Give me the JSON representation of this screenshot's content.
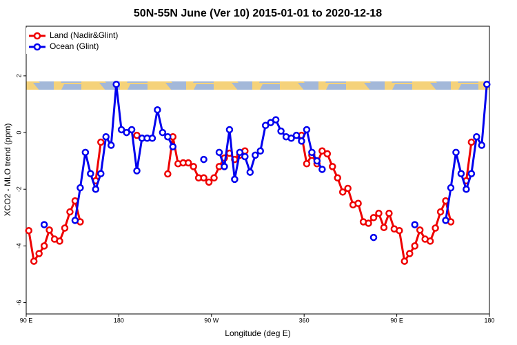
{
  "chart_data": {
    "type": "line",
    "title": "50N-55N June (Ver 10)   2015-01-01 to 2020-12-18",
    "x_label": "Longitude (deg E)",
    "y_label": "XCO2 - MLO trend (ppm)",
    "x": [
      92.5,
      97.5,
      102.5,
      107.5,
      112.5,
      117.5,
      122.5,
      127.5,
      132.5,
      137.5,
      142.5,
      147.5,
      152.5,
      157.5,
      162.5,
      167.5,
      172.5,
      177.5,
      182.5,
      187.5,
      192.5,
      197.5,
      202.5,
      207.5,
      212.5,
      217.5,
      222.5,
      227.5,
      232.5,
      237.5,
      242.5,
      247.5,
      252.5,
      257.5,
      262.5,
      267.5,
      272.5,
      277.5,
      282.5,
      287.5,
      292.5,
      297.5,
      302.5,
      307.5,
      312.5,
      317.5,
      322.5,
      327.5,
      332.5,
      337.5,
      342.5,
      347.5,
      352.5,
      357.5,
      362.5,
      367.5,
      372.5,
      377.5,
      382.5,
      387.5,
      392.5,
      397.5,
      402.5,
      407.5,
      412.5,
      417.5,
      422.5,
      427.5,
      432.5,
      437.5,
      442.5,
      447.5,
      452.5,
      457.5,
      462.5,
      467.5,
      472.5,
      477.5,
      482.5,
      487.5,
      492.5,
      497.5,
      502.5,
      507.5,
      512.5,
      517.5,
      522.5,
      527.5,
      532.5,
      537.5
    ],
    "series": [
      {
        "name": "Land (Nadir&Glint)",
        "color": "#ee0000",
        "values": [
          -3.46,
          -4.54,
          -4.27,
          -4.0,
          -3.44,
          -3.76,
          -3.83,
          -3.37,
          -2.8,
          -2.41,
          -3.15,
          null,
          null,
          -1.7,
          -0.34,
          null,
          null,
          null,
          null,
          null,
          null,
          -0.1,
          null,
          null,
          null,
          null,
          null,
          -1.46,
          -0.15,
          -1.1,
          -1.07,
          -1.07,
          -1.2,
          -1.6,
          -1.6,
          -1.75,
          -1.6,
          -1.2,
          -0.9,
          -0.73,
          -0.95,
          -0.8,
          -0.65,
          null,
          null,
          null,
          null,
          null,
          null,
          null,
          null,
          null,
          null,
          -0.1,
          -1.1,
          -0.8,
          -1.1,
          -0.65,
          -0.75,
          -1.2,
          -1.6,
          -2.1,
          -1.97,
          -2.55,
          -2.5,
          -3.15,
          -3.2,
          -3.0,
          -2.85,
          -3.35,
          -2.85,
          -3.4,
          -3.46,
          -4.54,
          -4.27,
          -4.0,
          -3.44,
          -3.76,
          -3.83,
          -3.37,
          -2.8,
          -2.41,
          -3.15,
          null,
          null,
          -1.7,
          -0.34,
          null,
          null,
          null
        ]
      },
      {
        "name": "Ocean (Glint)",
        "color": "#0000ee",
        "values": [
          null,
          null,
          null,
          -3.25,
          null,
          null,
          null,
          null,
          null,
          -3.1,
          -1.95,
          -0.7,
          -1.45,
          -2.0,
          -1.45,
          -0.15,
          -0.45,
          1.7,
          0.1,
          0.0,
          0.1,
          -1.35,
          -0.2,
          -0.2,
          -0.2,
          0.8,
          0.0,
          -0.15,
          -0.5,
          null,
          null,
          null,
          null,
          null,
          -0.95,
          null,
          null,
          -0.7,
          -1.2,
          0.1,
          -1.65,
          -0.7,
          -0.85,
          -1.4,
          -0.8,
          -0.65,
          0.25,
          0.35,
          0.45,
          0.05,
          -0.15,
          -0.2,
          -0.1,
          -0.3,
          0.1,
          -0.7,
          -1.0,
          -1.3,
          null,
          null,
          null,
          null,
          null,
          null,
          null,
          null,
          null,
          -3.7,
          null,
          null,
          null,
          null,
          null,
          null,
          null,
          -3.25,
          null,
          null,
          null,
          null,
          null,
          -3.1,
          -1.95,
          -0.7,
          -1.45,
          -2.0,
          -1.45,
          -0.15,
          -0.45,
          1.7
        ]
      }
    ],
    "xlim": [
      90,
      540
    ],
    "ylim": [
      -6.4,
      3.75
    ],
    "xticks": [
      {
        "value": 90,
        "label": "90 E"
      },
      180,
      {
        "value": 270,
        "label": "90 W"
      },
      360,
      {
        "value": 450,
        "label": "90 E"
      },
      {
        "value": 540,
        "label": "180"
      }
    ],
    "yticks": [
      -6,
      -4,
      -2,
      0,
      2
    ],
    "legend": "top-left"
  }
}
